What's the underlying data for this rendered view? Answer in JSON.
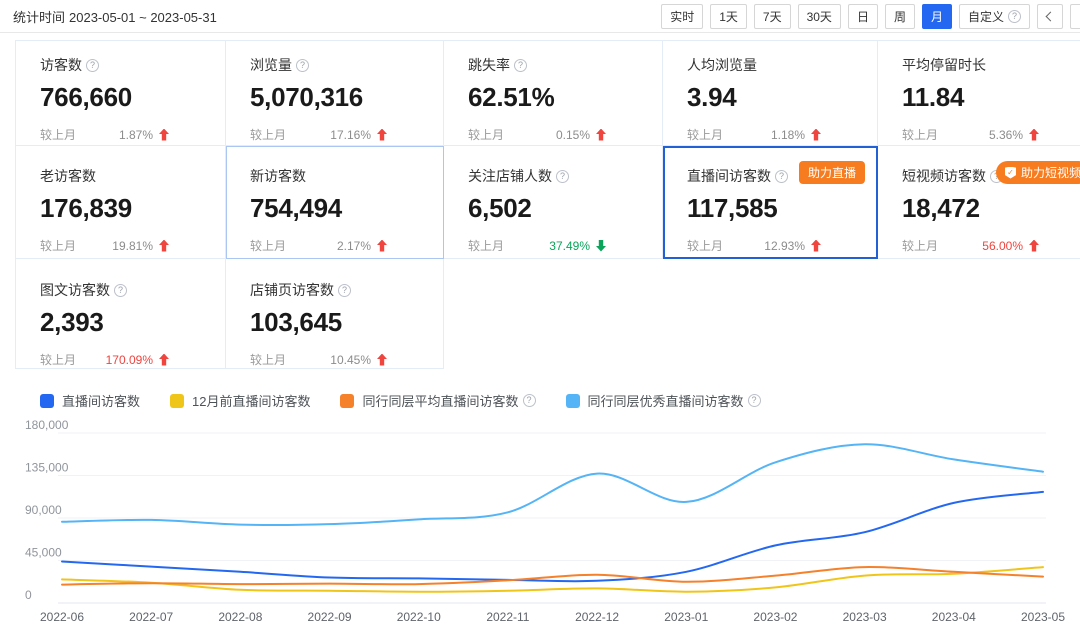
{
  "toolbar": {
    "stat_time_label": "统计时间",
    "date_range": "2023-05-01 ~ 2023-05-31",
    "buttons": [
      "实时",
      "1天",
      "7天",
      "30天",
      "日",
      "周",
      "月",
      "自定义"
    ],
    "selected_button": "月",
    "help_glyph": "?"
  },
  "cards_common": {
    "compare_label": "较上月"
  },
  "cards": [
    {
      "title": "访客数",
      "value": "766,660",
      "change": "1.87%",
      "direction": "up"
    },
    {
      "title": "浏览量",
      "value": "5,070,316",
      "change": "17.16%",
      "direction": "up"
    },
    {
      "title": "跳失率",
      "value": "62.51%",
      "change": "0.15%",
      "direction": "up"
    },
    {
      "title": "人均浏览量",
      "value": "3.94",
      "change": "1.18%",
      "direction": "up"
    },
    {
      "title": "平均停留时长",
      "value": "11.84",
      "change": "5.36%",
      "direction": "up"
    },
    {
      "title": "老访客数",
      "value": "176,839",
      "change": "19.81%",
      "direction": "up"
    },
    {
      "title": "新访客数",
      "value": "754,494",
      "change": "2.17%",
      "direction": "up"
    },
    {
      "title": "关注店铺人数",
      "value": "6,502",
      "change": "37.49%",
      "direction": "down"
    },
    {
      "title": "直播间访客数",
      "value": "117,585",
      "change": "12.93%",
      "direction": "up",
      "badge": "助力直播"
    },
    {
      "title": "短视频访客数",
      "value": "18,472",
      "change": "56.00%",
      "direction": "up",
      "badge": "助力短视频"
    },
    {
      "title": "图文访客数",
      "value": "2,393",
      "change": "170.09%",
      "direction": "up"
    },
    {
      "title": "店铺页访客数",
      "value": "103,645",
      "change": "10.45%",
      "direction": "up"
    }
  ],
  "colors": {
    "accent_blue": "#2468f2",
    "up_red": "#f0443e",
    "down_green": "#0aa45a",
    "badge_orange": "#f77c1f",
    "selected_card_border": "#2062d6",
    "highlight_card_border": "#a9c7f2"
  },
  "chart_data": {
    "type": "line",
    "title": "",
    "xlabel": "",
    "ylabel": "",
    "categories": [
      "2022-06",
      "2022-07",
      "2022-08",
      "2022-09",
      "2022-10",
      "2022-11",
      "2022-12",
      "2023-01",
      "2023-02",
      "2023-03",
      "2023-04",
      "2023-05"
    ],
    "series": [
      {
        "name": "直播间访客数",
        "color": "#2468f2",
        "values": [
          44000,
          38500,
          33000,
          27000,
          26000,
          24500,
          23500,
          33000,
          61000,
          75000,
          106000,
          117585
        ]
      },
      {
        "name": "12月前直播间访客数",
        "color": "#f0c51a",
        "values": [
          25000,
          21500,
          14000,
          13000,
          12000,
          13000,
          15500,
          12000,
          16500,
          29000,
          31000,
          38000
        ]
      },
      {
        "name": "同行同层平均直播间访客数",
        "color": "#f5812b",
        "has_help": true,
        "values": [
          19500,
          21000,
          20000,
          20500,
          20000,
          24000,
          30000,
          22500,
          29000,
          38000,
          33000,
          28000
        ]
      },
      {
        "name": "同行同层优秀直播间访客数",
        "color": "#54b4f5",
        "has_help": true,
        "values": [
          86000,
          88000,
          83000,
          83500,
          88500,
          96000,
          137000,
          107000,
          149000,
          168000,
          152000,
          139000
        ]
      }
    ],
    "ylim": [
      0,
      180000
    ],
    "y_ticks": [
      "0",
      "45,000",
      "90,000",
      "135,000",
      "180,000"
    ],
    "grid": true,
    "legend_position": "top-left"
  }
}
